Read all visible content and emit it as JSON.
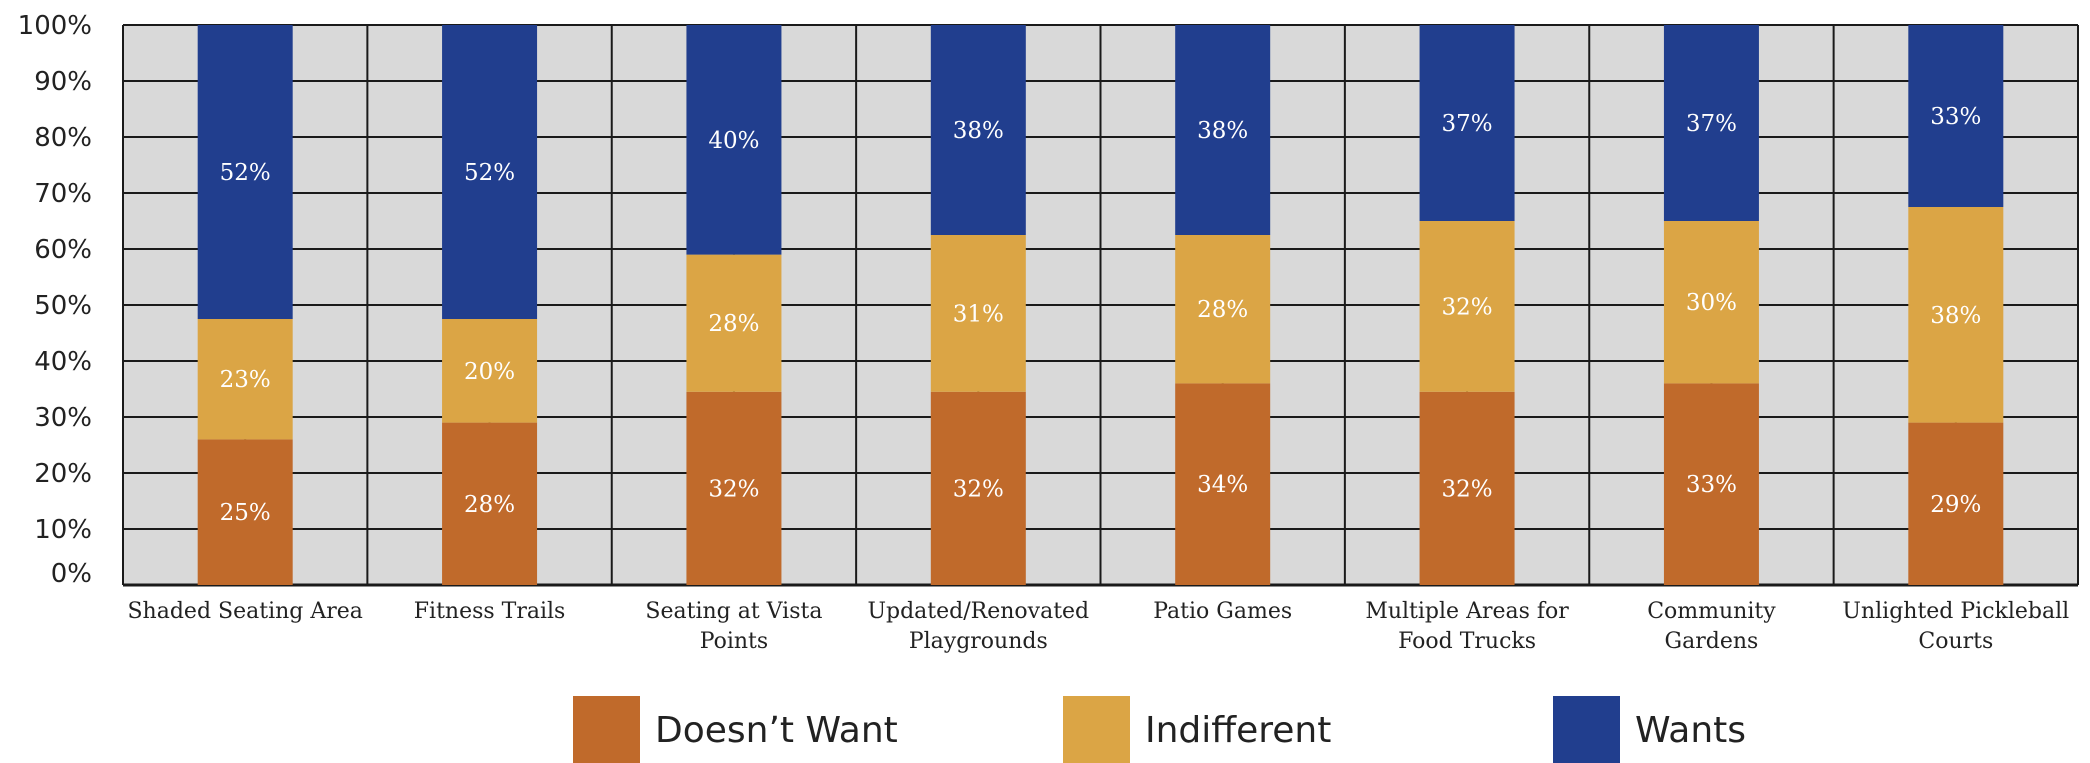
{
  "chart_data": {
    "type": "bar",
    "stacked": true,
    "categories": [
      "Shaded Seating Area",
      "Fitness Trails",
      "Seating at Vista Points",
      "Updated/Renovated Playgrounds",
      "Patio Games",
      "Multiple Areas for Food Trucks",
      "Community Gardens",
      "Unlighted Pickleball Courts"
    ],
    "category_lines": [
      [
        "Shaded Seating Area"
      ],
      [
        "Fitness Trails"
      ],
      [
        "Seating at Vista",
        "Points"
      ],
      [
        "Updated/Renovated",
        "Playgrounds"
      ],
      [
        "Patio Games"
      ],
      [
        "Multiple Areas for",
        "Food Trucks"
      ],
      [
        "Community",
        "Gardens"
      ],
      [
        "Unlighted Pickleball",
        "Courts"
      ]
    ],
    "series": [
      {
        "name": "Doesn’t Want",
        "color": "#c06a2b",
        "values": [
          25,
          28,
          32,
          32,
          34,
          32,
          33,
          29
        ],
        "labels": [
          "25%",
          "28%",
          "32%",
          "32%",
          "34%",
          "32%",
          "33%",
          "29%"
        ],
        "segment_values": [
          26,
          29,
          34.5,
          34.5,
          36,
          34.5,
          36,
          29
        ]
      },
      {
        "name": "Indifferent",
        "color": "#dba545",
        "values": [
          23,
          20,
          28,
          31,
          28,
          32,
          30,
          38
        ],
        "labels": [
          "23%",
          "20%",
          "28%",
          "31%",
          "28%",
          "32%",
          "30%",
          "38%"
        ],
        "segment_values": [
          21.5,
          18.5,
          24.5,
          28,
          26.5,
          30.5,
          29,
          38.5
        ]
      },
      {
        "name": "Wants",
        "color": "#213e8e",
        "values": [
          52,
          52,
          40,
          38,
          38,
          37,
          37,
          33
        ],
        "labels": [
          "52%",
          "52%",
          "40%",
          "38%",
          "38%",
          "37%",
          "37%",
          "33%"
        ],
        "segment_values": [
          52.5,
          52.5,
          41,
          37.5,
          37.5,
          35,
          35,
          32.5
        ]
      }
    ],
    "y_ticks": [
      "0%",
      "10%",
      "20%",
      "30%",
      "40%",
      "50%",
      "60%",
      "70%",
      "80%",
      "90%",
      "100%"
    ],
    "ylim": [
      0,
      100
    ],
    "grid": true,
    "legend_position": "bottom",
    "plot_background": "#d9d9d9",
    "grid_color": "#1a1a1a"
  }
}
